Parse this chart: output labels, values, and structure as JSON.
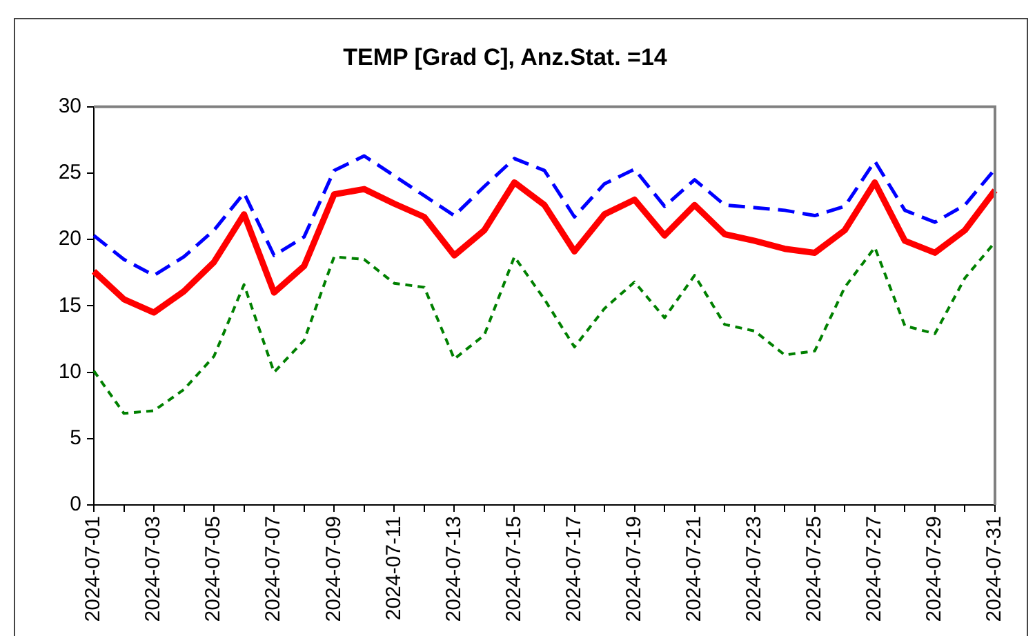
{
  "chart_data": {
    "type": "line",
    "title": "TEMP [Grad C], Anz.Stat. =14",
    "categories": [
      "2024-07-01",
      null,
      "2024-07-03",
      null,
      "2024-07-05",
      null,
      "2024-07-07",
      null,
      "2024-07-09",
      null,
      "2024-07-11",
      null,
      "2024-07-13",
      null,
      "2024-07-15",
      null,
      "2024-07-17",
      null,
      "2024-07-19",
      null,
      "2024-07-21",
      null,
      "2024-07-23",
      null,
      "2024-07-25",
      null,
      "2024-07-27",
      null,
      "2024-07-29",
      null,
      "2024-07-31"
    ],
    "series": [
      {
        "color": "#0000ff",
        "line_style": "dashed",
        "values": [
          20.3,
          18.5,
          17.3,
          18.7,
          20.7,
          23.5,
          18.8,
          20.2,
          25.2,
          26.3,
          24.8,
          23.3,
          21.8,
          24.0,
          26.1,
          25.2,
          21.7,
          24.2,
          25.3,
          22.5,
          24.5,
          22.6,
          22.4,
          22.2,
          21.8,
          22.5,
          25.9,
          22.2,
          21.3,
          22.6,
          25.3
        ]
      },
      {
        "color": "#ff0000",
        "line_style": "solid",
        "values": [
          17.6,
          15.5,
          14.5,
          16.1,
          18.3,
          21.9,
          16.0,
          18.0,
          23.4,
          23.8,
          22.7,
          21.7,
          18.8,
          20.7,
          24.3,
          22.6,
          19.1,
          21.9,
          23.0,
          20.3,
          22.6,
          20.4,
          19.9,
          19.3,
          19.0,
          20.7,
          24.3,
          19.9,
          19.0,
          20.7,
          23.7
        ]
      },
      {
        "color": "#008000",
        "line_style": "dotted",
        "values": [
          10.1,
          6.9,
          7.1,
          8.7,
          11.2,
          16.6,
          10.0,
          12.4,
          18.7,
          18.5,
          16.7,
          16.4,
          11.0,
          12.8,
          18.7,
          15.5,
          11.9,
          14.8,
          16.8,
          14.1,
          17.3,
          13.6,
          13.1,
          11.3,
          11.6,
          16.4,
          19.4,
          13.5,
          12.9,
          17.1,
          19.8
        ]
      }
    ],
    "ylim": [
      0,
      30
    ],
    "yticks": [
      0,
      5,
      10,
      15,
      20,
      25,
      30
    ],
    "grid": false,
    "legend": false,
    "marker": "none"
  }
}
